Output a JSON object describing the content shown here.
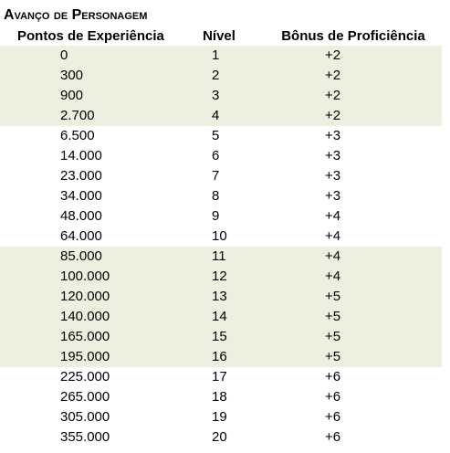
{
  "title": "Avanço de Personagem",
  "headers": {
    "xp": "Pontos de Experiência",
    "level": "Nível",
    "bonus": "Bônus de Proficiência"
  },
  "colors": {
    "shaded_row": "#ebf1de",
    "background": "#ffffff"
  },
  "rows": [
    {
      "xp": "0",
      "level": "1",
      "bonus": "+2",
      "shaded": true
    },
    {
      "xp": "300",
      "level": "2",
      "bonus": "+2",
      "shaded": true
    },
    {
      "xp": "900",
      "level": "3",
      "bonus": "+2",
      "shaded": true
    },
    {
      "xp": "2.700",
      "level": "4",
      "bonus": "+2",
      "shaded": true
    },
    {
      "xp": "6.500",
      "level": "5",
      "bonus": "+3",
      "shaded": false
    },
    {
      "xp": "14.000",
      "level": "6",
      "bonus": "+3",
      "shaded": false
    },
    {
      "xp": "23.000",
      "level": "7",
      "bonus": "+3",
      "shaded": false
    },
    {
      "xp": "34.000",
      "level": "8",
      "bonus": "+3",
      "shaded": false
    },
    {
      "xp": "48.000",
      "level": "9",
      "bonus": "+4",
      "shaded": false
    },
    {
      "xp": "64.000",
      "level": "10",
      "bonus": "+4",
      "shaded": false
    },
    {
      "xp": "85.000",
      "level": "11",
      "bonus": "+4",
      "shaded": true
    },
    {
      "xp": "100.000",
      "level": "12",
      "bonus": "+4",
      "shaded": true
    },
    {
      "xp": "120.000",
      "level": "13",
      "bonus": "+5",
      "shaded": true
    },
    {
      "xp": "140.000",
      "level": "14",
      "bonus": "+5",
      "shaded": true
    },
    {
      "xp": "165.000",
      "level": "15",
      "bonus": "+5",
      "shaded": true
    },
    {
      "xp": "195.000",
      "level": "16",
      "bonus": "+5",
      "shaded": true
    },
    {
      "xp": "225.000",
      "level": "17",
      "bonus": "+6",
      "shaded": false
    },
    {
      "xp": "265.000",
      "level": "18",
      "bonus": "+6",
      "shaded": false
    },
    {
      "xp": "305.000",
      "level": "19",
      "bonus": "+6",
      "shaded": false
    },
    {
      "xp": "355.000",
      "level": "20",
      "bonus": "+6",
      "shaded": false
    }
  ]
}
